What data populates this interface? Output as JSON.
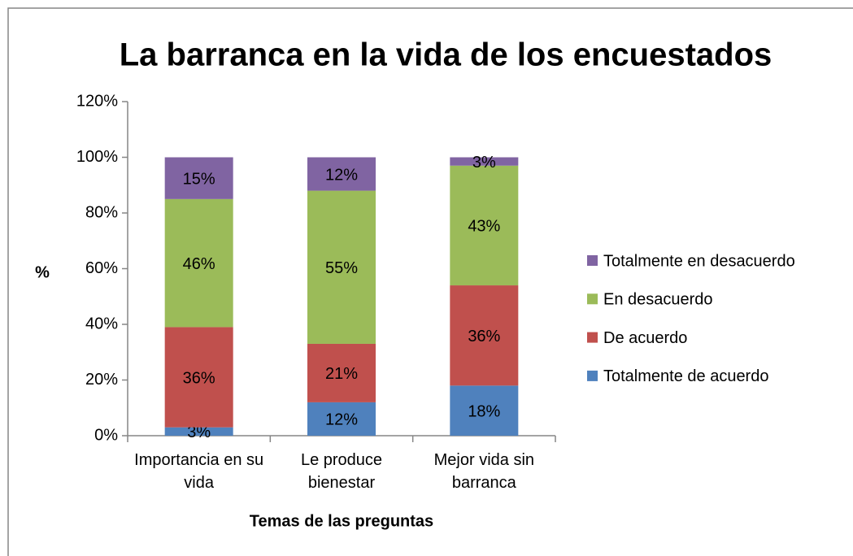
{
  "chart_data": {
    "type": "stacked_bar",
    "title": "La barranca en la vida de los encuestados",
    "x_label": "Temas de las preguntas",
    "y_label": "%",
    "categories": [
      "Importancia en su vida",
      "Le produce bienestar",
      "Mejor vida sin barranca"
    ],
    "series": [
      {
        "name": "Totalmente de acuerdo",
        "color": "#4f81bd",
        "values": [
          3,
          12,
          18
        ],
        "value_labels": [
          "3%",
          "12%",
          "18%"
        ]
      },
      {
        "name": "De acuerdo",
        "color": "#c0504d",
        "values": [
          36,
          21,
          36
        ],
        "value_labels": [
          "36%",
          "21%",
          "36%"
        ]
      },
      {
        "name": "En desacuerdo",
        "color": "#9bbb59",
        "values": [
          46,
          55,
          43
        ],
        "value_labels": [
          "46%",
          "55%",
          "43%"
        ]
      },
      {
        "name": "Totalmente en desacuerdo",
        "color": "#8064a2",
        "values": [
          15,
          12,
          3
        ],
        "value_labels": [
          "15%",
          "12%",
          "3%"
        ]
      }
    ],
    "ylim": [
      0,
      120
    ],
    "yticks": [
      {
        "value": 0,
        "label": "0%"
      },
      {
        "value": 20,
        "label": "20%"
      },
      {
        "value": 40,
        "label": "40%"
      },
      {
        "value": 60,
        "label": "60%"
      },
      {
        "value": 80,
        "label": "80%"
      },
      {
        "value": 100,
        "label": "100%"
      },
      {
        "value": 120,
        "label": "120%"
      }
    ],
    "grid": false,
    "legend": "right"
  }
}
